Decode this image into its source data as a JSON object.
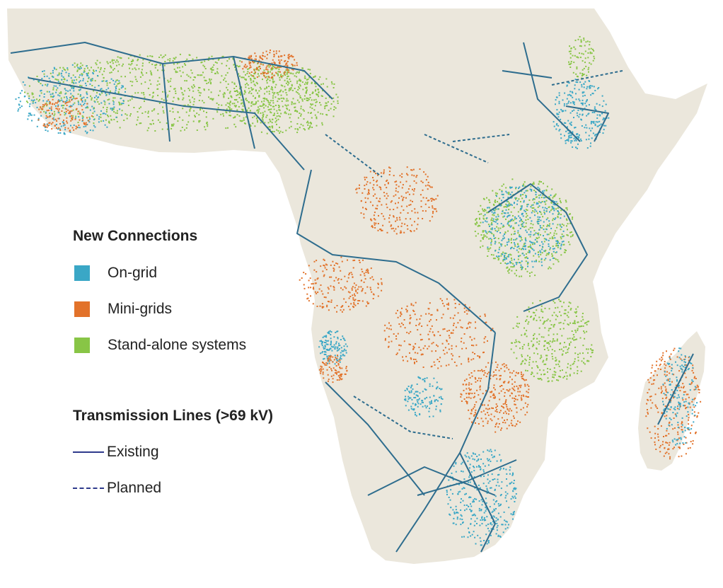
{
  "colors": {
    "land": "#ebe7dc",
    "sea": "#ffffff",
    "on_grid": "#3aa7c6",
    "mini_grids": "#e2722a",
    "stand_alone": "#88c546",
    "transmission": "#2e6d8e",
    "legend_line": "#2e3a8c"
  },
  "legend": {
    "connections_title": "New Connections",
    "items": [
      {
        "label": "On-grid",
        "color": "#3aa7c6"
      },
      {
        "label": "Mini-grids",
        "color": "#e2722a"
      },
      {
        "label": "Stand-alone systems",
        "color": "#88c546"
      }
    ],
    "transmission_title": "Transmission Lines (>69 kV)",
    "lines": [
      {
        "label": "Existing",
        "style": "solid"
      },
      {
        "label": "Planned",
        "style": "dashed"
      }
    ]
  }
}
